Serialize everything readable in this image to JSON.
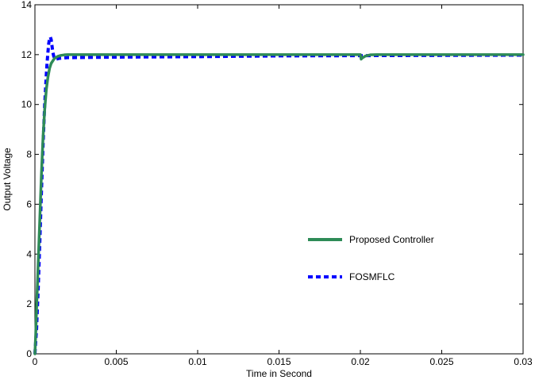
{
  "chart_data": {
    "type": "line",
    "title": "",
    "xlabel": "Time in Second",
    "ylabel": "Output Voltage",
    "xlim": [
      0,
      0.03
    ],
    "ylim": [
      0,
      14
    ],
    "xticks": [
      0,
      0.005,
      0.01,
      0.015,
      0.02,
      0.025,
      0.03
    ],
    "xtick_labels": [
      "0",
      "0.005",
      "0.01",
      "0.015",
      "0.02",
      "0.025",
      "0.03"
    ],
    "yticks": [
      0,
      2,
      4,
      6,
      8,
      10,
      12,
      14
    ],
    "ytick_labels": [
      "0",
      "2",
      "4",
      "6",
      "8",
      "10",
      "12",
      "14"
    ],
    "grid": false,
    "legend_position": "center-right",
    "series": [
      {
        "name": "Proposed Controller",
        "color": "#2e8b57",
        "style": "solid",
        "x": [
          0,
          5e-05,
          0.0001,
          0.0002,
          0.0003,
          0.0004,
          0.0005,
          0.0006,
          0.0007,
          0.0008,
          0.0009,
          0.001,
          0.0012,
          0.0014,
          0.0016,
          0.0018,
          0.002,
          0.005,
          0.01,
          0.015,
          0.0199,
          0.02,
          0.02005,
          0.0201,
          0.0203,
          0.0206,
          0.021,
          0.025,
          0.03
        ],
        "y": [
          0,
          0.8,
          1.8,
          3.6,
          5.4,
          7.2,
          8.7,
          9.8,
          10.6,
          11.1,
          11.45,
          11.65,
          11.85,
          11.93,
          11.97,
          11.99,
          12.0,
          12.0,
          12.0,
          12.0,
          12.0,
          12.0,
          11.82,
          11.86,
          11.94,
          11.99,
          12.0,
          12.0,
          12.0
        ]
      },
      {
        "name": "FOSMFLC",
        "color": "#0000ff",
        "style": "dashed",
        "x": [
          0,
          0.0001,
          0.0002,
          0.0003,
          0.0004,
          0.0005,
          0.0006,
          0.0007,
          0.00075,
          0.0008,
          0.00085,
          0.0009,
          0.00095,
          0.001,
          0.00105,
          0.0011,
          0.00115,
          0.0012,
          0.0013,
          0.0015,
          0.002,
          0.005,
          0.01,
          0.015,
          0.02,
          0.025,
          0.03
        ],
        "y": [
          0,
          1.0,
          2.6,
          4.5,
          6.5,
          8.4,
          10.0,
          11.2,
          11.7,
          12.1,
          12.45,
          12.65,
          12.7,
          12.6,
          12.35,
          12.1,
          11.95,
          11.85,
          11.82,
          11.85,
          11.88,
          11.9,
          11.92,
          11.95,
          11.96,
          11.97,
          11.98
        ]
      }
    ]
  }
}
